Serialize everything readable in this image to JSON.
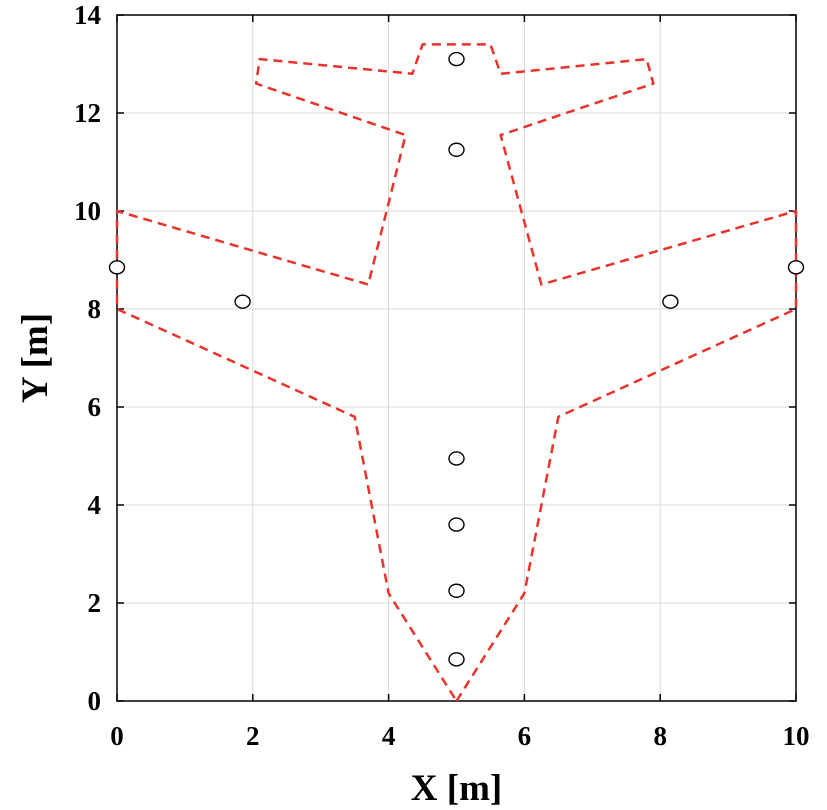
{
  "chart_data": {
    "type": "scatter",
    "title": "",
    "xlabel": "X [m]",
    "ylabel": "Y [m]",
    "xlim": [
      0,
      10
    ],
    "ylim": [
      0,
      14
    ],
    "x_ticks": [
      0,
      2,
      4,
      6,
      8,
      10
    ],
    "y_ticks": [
      0,
      2,
      4,
      6,
      8,
      10,
      12,
      14
    ],
    "grid": true,
    "outline": {
      "style": "dashed",
      "color": "#e8322c",
      "points": [
        [
          5.0,
          0.0
        ],
        [
          6.0,
          2.2
        ],
        [
          6.5,
          5.8
        ],
        [
          10.0,
          8.0
        ],
        [
          10.0,
          10.0
        ],
        [
          6.25,
          8.5
        ],
        [
          5.65,
          11.55
        ],
        [
          7.9,
          12.6
        ],
        [
          7.8,
          13.1
        ],
        [
          5.65,
          12.8
        ],
        [
          5.5,
          13.4
        ],
        [
          4.5,
          13.4
        ],
        [
          4.35,
          12.8
        ],
        [
          2.1,
          13.1
        ],
        [
          2.05,
          12.6
        ],
        [
          4.25,
          11.55
        ],
        [
          3.7,
          8.5
        ],
        [
          0.0,
          10.0
        ],
        [
          0.0,
          8.0
        ],
        [
          3.5,
          5.8
        ],
        [
          4.0,
          2.2
        ],
        [
          5.0,
          0.0
        ]
      ]
    },
    "points": {
      "marker": "open-circle",
      "color": "#000000",
      "x": [
        5.0,
        5.0,
        0.0,
        1.85,
        8.15,
        10.0,
        5.0,
        5.0,
        5.0,
        5.0
      ],
      "y": [
        13.1,
        11.25,
        8.85,
        8.15,
        8.15,
        8.85,
        4.95,
        3.6,
        2.25,
        0.85
      ]
    }
  }
}
